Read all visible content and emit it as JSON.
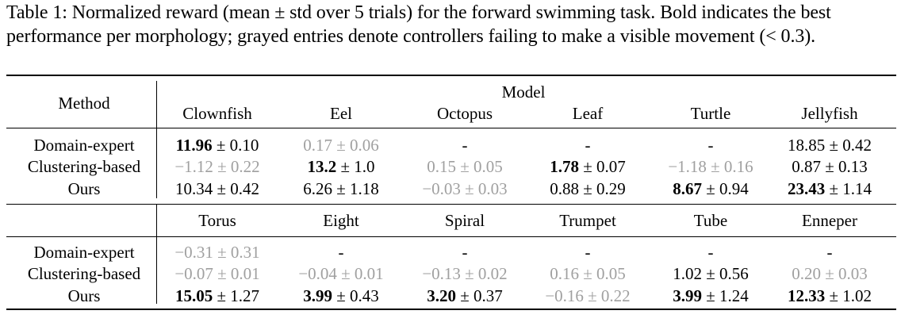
{
  "caption": "Table 1: Normalized reward (mean ± std over 5 trials) for the forward swimming task. Bold indicates the best performance per morphology; grayed entries denote controllers failing to make a visible movement (< 0.3).",
  "table": {
    "method_header": "Method",
    "model_header": "Model",
    "pm": "±",
    "blocks": [
      {
        "columns": [
          "Clownfish",
          "Eel",
          "Octopus",
          "Leaf",
          "Turtle",
          "Jellyfish"
        ],
        "rows": [
          {
            "method": "Domain-expert",
            "cells": [
              {
                "mean": "11.96",
                "std": "0.10",
                "bold": true,
                "gray": false
              },
              {
                "mean": "0.17",
                "std": "0.06",
                "bold": false,
                "gray": true
              },
              {
                "dash": "-"
              },
              {
                "dash": "-"
              },
              {
                "dash": "-"
              },
              {
                "mean": "18.85",
                "std": "0.42",
                "bold": false,
                "gray": false
              }
            ]
          },
          {
            "method": "Clustering-based",
            "cells": [
              {
                "mean": "−1.12",
                "std": "0.22",
                "bold": false,
                "gray": true
              },
              {
                "mean": "13.2",
                "std": "1.0",
                "bold": true,
                "gray": false
              },
              {
                "mean": "0.15",
                "std": "0.05",
                "bold": false,
                "gray": true
              },
              {
                "mean": "1.78",
                "std": "0.07",
                "bold": true,
                "gray": false
              },
              {
                "mean": "−1.18",
                "std": "0.16",
                "bold": false,
                "gray": true
              },
              {
                "mean": "0.87",
                "std": "0.13",
                "bold": false,
                "gray": false
              }
            ]
          },
          {
            "method": "Ours",
            "cells": [
              {
                "mean": "10.34",
                "std": "0.42",
                "bold": false,
                "gray": false
              },
              {
                "mean": "6.26",
                "std": "1.18",
                "bold": false,
                "gray": false
              },
              {
                "mean": "−0.03",
                "std": "0.03",
                "bold": false,
                "gray": true
              },
              {
                "mean": "0.88",
                "std": "0.29",
                "bold": false,
                "gray": false
              },
              {
                "mean": "8.67",
                "std": "0.94",
                "bold": true,
                "gray": false
              },
              {
                "mean": "23.43",
                "std": "1.14",
                "bold": true,
                "gray": false
              }
            ]
          }
        ]
      },
      {
        "columns": [
          "Torus",
          "Eight",
          "Spiral",
          "Trumpet",
          "Tube",
          "Enneper"
        ],
        "rows": [
          {
            "method": "Domain-expert",
            "cells": [
              {
                "mean": "−0.31",
                "std": "0.31",
                "bold": false,
                "gray": true
              },
              {
                "dash": "-"
              },
              {
                "dash": "-"
              },
              {
                "dash": "-"
              },
              {
                "dash": "-"
              },
              {
                "dash": "-"
              }
            ]
          },
          {
            "method": "Clustering-based",
            "cells": [
              {
                "mean": "−0.07",
                "std": "0.01",
                "bold": false,
                "gray": true
              },
              {
                "mean": "−0.04",
                "std": "0.01",
                "bold": false,
                "gray": true
              },
              {
                "mean": "−0.13",
                "std": "0.02",
                "bold": false,
                "gray": true
              },
              {
                "mean": "0.16",
                "std": "0.05",
                "bold": false,
                "gray": true
              },
              {
                "mean": "1.02",
                "std": "0.56",
                "bold": false,
                "gray": false
              },
              {
                "mean": "0.20",
                "std": "0.03",
                "bold": false,
                "gray": true
              }
            ]
          },
          {
            "method": "Ours",
            "cells": [
              {
                "mean": "15.05",
                "std": "1.27",
                "bold": true,
                "gray": false
              },
              {
                "mean": "3.99",
                "std": "0.43",
                "bold": true,
                "gray": false
              },
              {
                "mean": "3.20",
                "std": "0.37",
                "bold": true,
                "gray": false
              },
              {
                "mean": "−0.16",
                "std": "0.22",
                "bold": false,
                "gray": true
              },
              {
                "mean": "3.99",
                "std": "1.24",
                "bold": true,
                "gray": false
              },
              {
                "mean": "12.33",
                "std": "1.02",
                "bold": true,
                "gray": false
              }
            ]
          }
        ]
      }
    ]
  }
}
